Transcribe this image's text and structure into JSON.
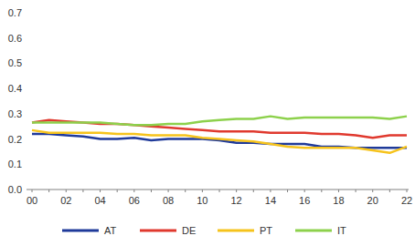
{
  "chart_data": {
    "type": "line",
    "categories": [
      "00",
      null,
      "02",
      null,
      "04",
      null,
      "06",
      null,
      "08",
      null,
      "10",
      null,
      "12",
      null,
      "14",
      null,
      "16",
      null,
      "18",
      null,
      "20",
      null,
      "22"
    ],
    "series": [
      {
        "name": "AT",
        "color": "#1f3a9a",
        "values": [
          0.22,
          0.22,
          0.215,
          0.21,
          0.2,
          0.2,
          0.205,
          0.195,
          0.2,
          0.2,
          0.2,
          0.195,
          0.185,
          0.185,
          0.18,
          0.18,
          0.18,
          0.17,
          0.17,
          0.165,
          0.165,
          0.165,
          0.165
        ]
      },
      {
        "name": "DE",
        "color": "#e0392e",
        "values": [
          0.265,
          0.275,
          0.27,
          0.265,
          0.26,
          0.26,
          0.255,
          0.25,
          0.245,
          0.24,
          0.235,
          0.23,
          0.23,
          0.23,
          0.225,
          0.225,
          0.225,
          0.22,
          0.22,
          0.215,
          0.205,
          0.215,
          0.215
        ]
      },
      {
        "name": "PT",
        "color": "#f6c31c",
        "values": [
          0.235,
          0.225,
          0.225,
          0.225,
          0.225,
          0.22,
          0.22,
          0.215,
          0.215,
          0.215,
          0.205,
          0.2,
          0.195,
          0.19,
          0.18,
          0.17,
          0.165,
          0.165,
          0.165,
          0.165,
          0.155,
          0.145,
          0.17
        ]
      },
      {
        "name": "IT",
        "color": "#8dd14c",
        "values": [
          0.265,
          0.265,
          0.265,
          0.265,
          0.265,
          0.26,
          0.255,
          0.255,
          0.26,
          0.26,
          0.27,
          0.275,
          0.28,
          0.28,
          0.29,
          0.28,
          0.285,
          0.285,
          0.285,
          0.285,
          0.285,
          0.28,
          0.29
        ]
      }
    ],
    "ylim": [
      0,
      0.7
    ],
    "yticks": [
      {
        "value": 0,
        "label": "0.0"
      },
      0.1,
      0.2,
      0.3,
      0.4,
      0.5,
      0.6,
      0.7
    ],
    "grid": false,
    "legend": "bottom"
  }
}
